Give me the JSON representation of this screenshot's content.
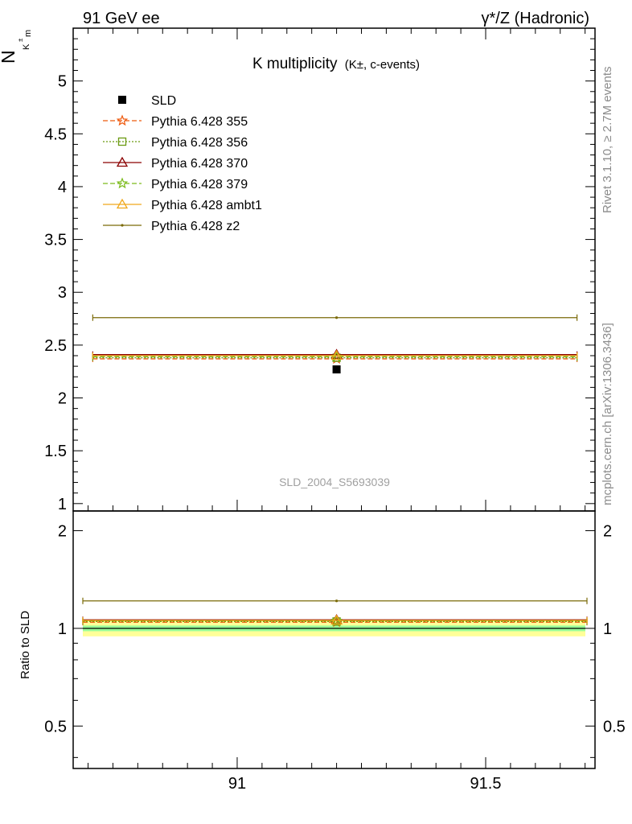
{
  "header": {
    "left": "91 GeV ee",
    "right": "γ*/Z (Hadronic)"
  },
  "side_labels": {
    "rivet": "Rivet 3.1.10, ≥ 2.7M events",
    "mcplots": "mcplots.cern.ch [arXiv:1306.3436]"
  },
  "chart_data": [
    {
      "type": "scatter",
      "panel": "main",
      "title": "K multiplicity",
      "title_detail": "(K±, c-events)",
      "ylabel": "N_{K^{±}_{m}}",
      "analysis_id": "SLD_2004_S5693039",
      "xlim": [
        90.67,
        91.72
      ],
      "ylim": [
        0.93,
        5.5
      ],
      "yticks": [
        1,
        1.5,
        2,
        2.5,
        3,
        3.5,
        4,
        4.5,
        5
      ],
      "ytick_labels": [
        "1",
        "1.5",
        "2",
        "2.5",
        "3",
        "3.5",
        "4",
        "4.5",
        "5"
      ],
      "legend_position": "top-left",
      "data": {
        "name": "SLD",
        "color": "#000000",
        "marker": "square",
        "x": 91.2,
        "y": 2.27
      },
      "series": [
        {
          "name": "Pythia 6.428 355",
          "color": "#ee5a0f",
          "dash": "dashed",
          "marker": "star",
          "x": 91.2,
          "y": 2.37,
          "xrange": [
            90.69,
            91.7
          ]
        },
        {
          "name": "Pythia 6.428 356",
          "color": "#6b9a12",
          "dash": "dotted",
          "marker": "open-square",
          "x": 91.2,
          "y": 2.38,
          "xrange": [
            90.69,
            91.7
          ]
        },
        {
          "name": "Pythia 6.428 370",
          "color": "#8b0000",
          "dash": "solid",
          "marker": "open-triangle",
          "x": 91.2,
          "y": 2.41,
          "xrange": [
            90.69,
            91.7
          ]
        },
        {
          "name": "Pythia 6.428 379",
          "color": "#7cbb1c",
          "dash": "dashed",
          "marker": "star",
          "x": 91.2,
          "y": 2.39,
          "xrange": [
            90.69,
            91.7
          ]
        },
        {
          "name": "Pythia 6.428 ambt1",
          "color": "#f0a81a",
          "dash": "solid",
          "marker": "open-triangle",
          "x": 91.2,
          "y": 2.4,
          "xrange": [
            90.69,
            91.7
          ]
        },
        {
          "name": "Pythia 6.428 z2",
          "color": "#7a6a08",
          "dash": "solid",
          "marker": "dot",
          "x": 91.2,
          "y": 2.76,
          "xrange": [
            90.69,
            91.7
          ]
        }
      ]
    },
    {
      "type": "scatter",
      "panel": "ratio",
      "ylabel": "Ratio to SLD",
      "xlim": [
        90.67,
        91.72
      ],
      "xticks": [
        91,
        91.5
      ],
      "xtick_labels": [
        "91",
        "91.5"
      ],
      "ylim": [
        0.37,
        2.3
      ],
      "log_y": true,
      "yticks": [
        0.5,
        1,
        2
      ],
      "ytick_labels": [
        "0.5",
        "1",
        "2"
      ],
      "bands": [
        {
          "name": "total uncertainty",
          "color": "#ffff99",
          "low": 0.945,
          "high": 1.055
        },
        {
          "name": "statistical uncertainty",
          "color": "#99ff99",
          "low": 0.98,
          "high": 1.02
        }
      ],
      "series": [
        {
          "name": "Pythia 6.428 355",
          "color": "#ee5a0f",
          "dash": "dashed",
          "marker": "star",
          "x": 91.2,
          "y": 1.045
        },
        {
          "name": "Pythia 6.428 356",
          "color": "#6b9a12",
          "dash": "dotted",
          "marker": "open-square",
          "x": 91.2,
          "y": 1.05
        },
        {
          "name": "Pythia 6.428 370",
          "color": "#8b0000",
          "dash": "solid",
          "marker": "open-triangle",
          "x": 91.2,
          "y": 1.062
        },
        {
          "name": "Pythia 6.428 379",
          "color": "#7cbb1c",
          "dash": "dashed",
          "marker": "star",
          "x": 91.2,
          "y": 1.055
        },
        {
          "name": "Pythia 6.428 ambt1",
          "color": "#f0a81a",
          "dash": "solid",
          "marker": "open-triangle",
          "x": 91.2,
          "y": 1.058
        },
        {
          "name": "Pythia 6.428 z2",
          "color": "#7a6a08",
          "dash": "solid",
          "marker": "dot",
          "x": 91.2,
          "y": 1.215
        }
      ]
    }
  ]
}
